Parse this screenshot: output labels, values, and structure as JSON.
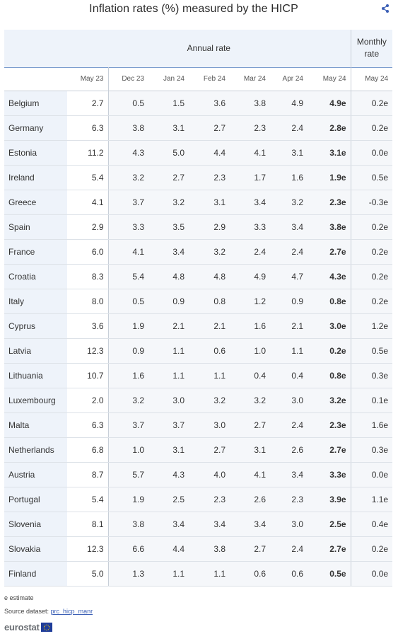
{
  "title": "Inflation rates (%) measured by the HICP",
  "header": {
    "annual_label": "Annual rate",
    "monthly_label_line1": "Monthly",
    "monthly_label_line2": "rate",
    "months": [
      "May 23",
      "Dec 23",
      "Jan 24",
      "Feb 24",
      "Mar 24",
      "Apr 24",
      "May 24",
      "May 24"
    ]
  },
  "rows": [
    {
      "country": "Belgium",
      "v": [
        "2.7",
        "0.5",
        "1.5",
        "3.6",
        "3.8",
        "4.9",
        "4.9e",
        "0.2e"
      ]
    },
    {
      "country": "Germany",
      "v": [
        "6.3",
        "3.8",
        "3.1",
        "2.7",
        "2.3",
        "2.4",
        "2.8e",
        "0.2e"
      ]
    },
    {
      "country": "Estonia",
      "v": [
        "11.2",
        "4.3",
        "5.0",
        "4.4",
        "4.1",
        "3.1",
        "3.1e",
        "0.0e"
      ]
    },
    {
      "country": "Ireland",
      "v": [
        "5.4",
        "3.2",
        "2.7",
        "2.3",
        "1.7",
        "1.6",
        "1.9e",
        "0.5e"
      ]
    },
    {
      "country": "Greece",
      "v": [
        "4.1",
        "3.7",
        "3.2",
        "3.1",
        "3.4",
        "3.2",
        "2.3e",
        "-0.3e"
      ]
    },
    {
      "country": "Spain",
      "v": [
        "2.9",
        "3.3",
        "3.5",
        "2.9",
        "3.3",
        "3.4",
        "3.8e",
        "0.2e"
      ]
    },
    {
      "country": "France",
      "v": [
        "6.0",
        "4.1",
        "3.4",
        "3.2",
        "2.4",
        "2.4",
        "2.7e",
        "0.2e"
      ]
    },
    {
      "country": "Croatia",
      "v": [
        "8.3",
        "5.4",
        "4.8",
        "4.8",
        "4.9",
        "4.7",
        "4.3e",
        "0.2e"
      ]
    },
    {
      "country": "Italy",
      "v": [
        "8.0",
        "0.5",
        "0.9",
        "0.8",
        "1.2",
        "0.9",
        "0.8e",
        "0.2e"
      ]
    },
    {
      "country": "Cyprus",
      "v": [
        "3.6",
        "1.9",
        "2.1",
        "2.1",
        "1.6",
        "2.1",
        "3.0e",
        "1.2e"
      ]
    },
    {
      "country": "Latvia",
      "v": [
        "12.3",
        "0.9",
        "1.1",
        "0.6",
        "1.0",
        "1.1",
        "0.2e",
        "0.5e"
      ]
    },
    {
      "country": "Lithuania",
      "v": [
        "10.7",
        "1.6",
        "1.1",
        "1.1",
        "0.4",
        "0.4",
        "0.8e",
        "0.3e"
      ]
    },
    {
      "country": "Luxembourg",
      "v": [
        "2.0",
        "3.2",
        "3.0",
        "3.2",
        "3.2",
        "3.0",
        "3.2e",
        "0.1e"
      ]
    },
    {
      "country": "Malta",
      "v": [
        "6.3",
        "3.7",
        "3.7",
        "3.0",
        "2.7",
        "2.4",
        "2.3e",
        "1.6e"
      ]
    },
    {
      "country": "Netherlands",
      "v": [
        "6.8",
        "1.0",
        "3.1",
        "2.7",
        "3.1",
        "2.6",
        "2.7e",
        "0.3e"
      ]
    },
    {
      "country": "Austria",
      "v": [
        "8.7",
        "5.7",
        "4.3",
        "4.0",
        "4.1",
        "3.4",
        "3.3e",
        "0.0e"
      ]
    },
    {
      "country": "Portugal",
      "v": [
        "5.4",
        "1.9",
        "2.5",
        "2.3",
        "2.6",
        "2.3",
        "3.9e",
        "1.1e"
      ]
    },
    {
      "country": "Slovenia",
      "v": [
        "8.1",
        "3.8",
        "3.4",
        "3.4",
        "3.4",
        "3.0",
        "2.5e",
        "0.4e"
      ]
    },
    {
      "country": "Slovakia",
      "v": [
        "12.3",
        "6.6",
        "4.4",
        "3.8",
        "2.7",
        "2.4",
        "2.7e",
        "0.2e"
      ]
    },
    {
      "country": "Finland",
      "v": [
        "5.0",
        "1.3",
        "1.1",
        "1.1",
        "0.6",
        "0.6",
        "0.5e",
        "0.0e"
      ]
    }
  ],
  "footer": {
    "estimate_note": "e estimate",
    "source_label": "Source dataset: ",
    "source_link": "prc_hicp_manr",
    "logo_text": "eurostat"
  },
  "colors": {
    "header_bg": "#eef3fa",
    "link": "#3b5fb5",
    "eu_flag": "#1f3d9a"
  },
  "icons": {
    "share": "share-icon"
  }
}
